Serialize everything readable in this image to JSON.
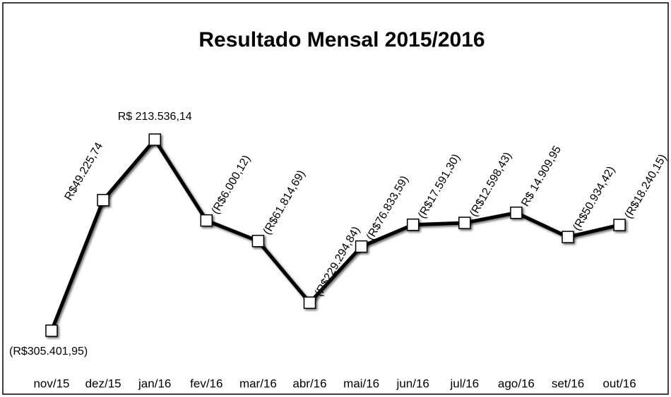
{
  "chart_data": {
    "type": "line",
    "title": "Resultado Mensal 2015/2016",
    "categories": [
      "nov/15",
      "dez/15",
      "jan/16",
      "fev/16",
      "mar/16",
      "abr/16",
      "mai/16",
      "jun/16",
      "jul/16",
      "ago/16",
      "set/16",
      "out/16"
    ],
    "series": [
      {
        "name": "Resultado",
        "color": "#000000",
        "values": [
          -305401.95,
          49225.74,
          213536.14,
          -6000.12,
          -61814.69,
          -229294.84,
          -76833.59,
          -17591.3,
          -12598.43,
          14909.95,
          -50934.42,
          -18240.15
        ],
        "value_labels": [
          "(R$305.401,95)",
          "R$49.225,74",
          "R$ 213.536,14",
          "(R$6.000,12)",
          "(R$61.814,69)",
          "(R$229.294,84)",
          "(R$76.833,59)",
          "(R$17.591,30)",
          "(R$12.598,43)",
          "R$ 14.909,95",
          "(R$50.934,42)",
          "(R$18.240,15)"
        ]
      }
    ]
  }
}
